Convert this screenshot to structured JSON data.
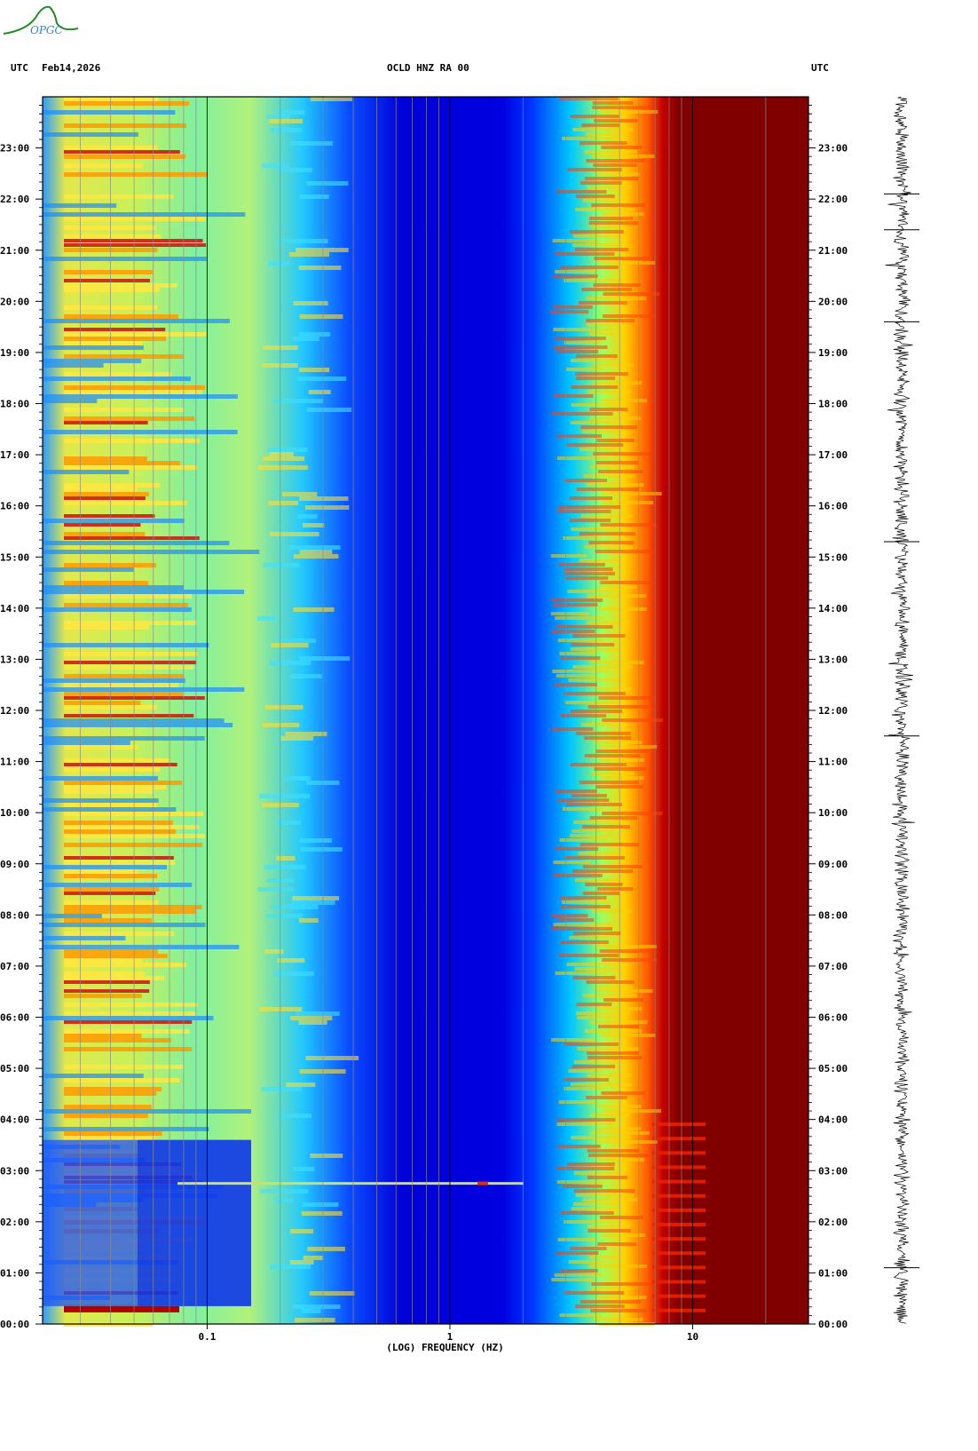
{
  "header": {
    "tz_left": "UTC",
    "date": "Feb14,2026",
    "station": "OCLD HNZ RA 00",
    "tz_right": "UTC"
  },
  "logo": {
    "text": "OPGC",
    "color": "#2a8a2a"
  },
  "chart_data": {
    "type": "heatmap",
    "title": "OCLD HNZ RA 00",
    "xlabel": "(LOG) FREQUENCY (HZ)",
    "xscale": "log",
    "xlim": [
      0.021,
      30
    ],
    "x_ticks": [
      {
        "value": 0.1,
        "label": "0.1"
      },
      {
        "value": 1,
        "label": "1"
      },
      {
        "value": 10,
        "label": "10"
      }
    ],
    "ylim_hours": [
      0,
      24
    ],
    "y_ticks": [
      "00:00",
      "01:00",
      "02:00",
      "03:00",
      "04:00",
      "05:00",
      "06:00",
      "07:00",
      "08:00",
      "09:00",
      "10:00",
      "11:00",
      "12:00",
      "13:00",
      "14:00",
      "15:00",
      "16:00",
      "17:00",
      "18:00",
      "19:00",
      "20:00",
      "21:00",
      "22:00",
      "23:00"
    ],
    "colormap": [
      "#00008f",
      "#0000ff",
      "#0080ff",
      "#00ffff",
      "#80ff80",
      "#ffff00",
      "#ff8000",
      "#ff0000",
      "#800000"
    ],
    "side_panel": "seismogram trace (24 h)"
  }
}
